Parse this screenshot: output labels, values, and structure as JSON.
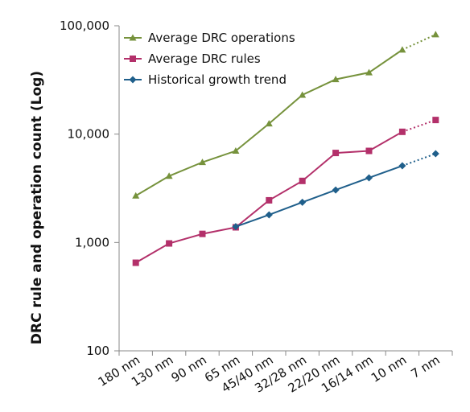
{
  "chart_data": {
    "type": "line",
    "ylabel": "DRC rule and operation count (Log)",
    "xlabel": "",
    "yscale": "log",
    "ylim": [
      100,
      100000
    ],
    "y_ticks": [
      {
        "value": 100,
        "label": "100"
      },
      {
        "value": 1000,
        "label": "1,000"
      },
      {
        "value": 10000,
        "label": "10,000"
      },
      {
        "value": 100000,
        "label": "100,000"
      }
    ],
    "x_tick_labels": [
      "180 nm",
      "130 nm",
      "90 nm",
      "65 nm",
      "45/40 nm",
      "32/28 nm",
      "22/20 nm",
      "16/14 nm",
      "10 nm",
      "7 nm"
    ],
    "legend_position": "top-left",
    "grid": false,
    "series": [
      {
        "name": "Average DRC operations",
        "color": "#76923c",
        "marker": "triangle",
        "values": [
          2700,
          4100,
          5500,
          7000,
          12500,
          23000,
          32000,
          37000,
          60000,
          83000
        ],
        "dashed_last_segment": true
      },
      {
        "name": "Average DRC rules",
        "color": "#b3306a",
        "marker": "square",
        "values": [
          650,
          980,
          1200,
          1380,
          2450,
          3700,
          6700,
          7000,
          10500,
          13500
        ],
        "dashed_last_segment": true
      },
      {
        "name": "Historical growth trend",
        "color": "#1f5f8b",
        "marker": "diamond",
        "values": [
          null,
          null,
          null,
          1400,
          1800,
          2350,
          3050,
          3950,
          5100,
          6600
        ],
        "dashed_last_segment": true
      }
    ]
  }
}
